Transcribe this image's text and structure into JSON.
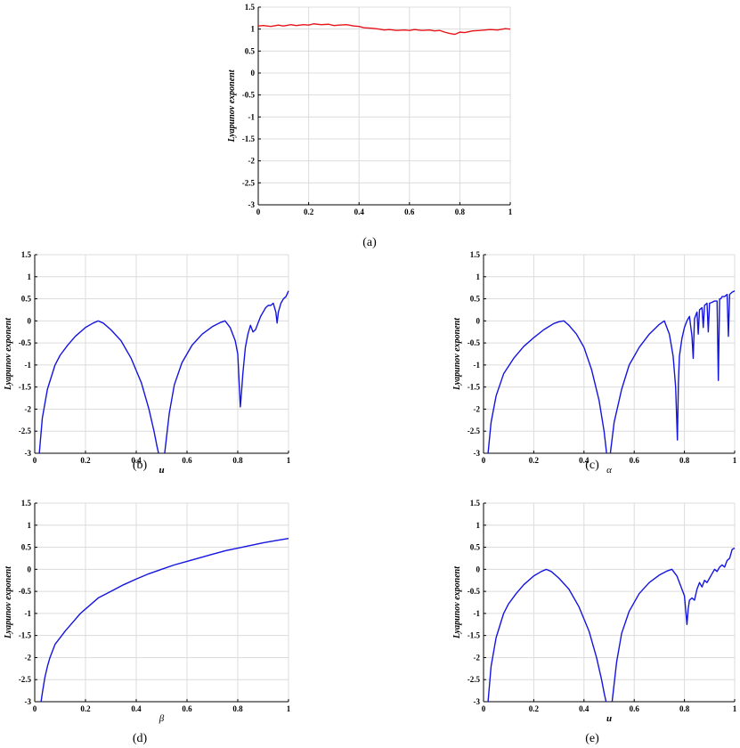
{
  "chart_data": [
    {
      "type": "line",
      "caption": "(a)",
      "ylabel": "Lyapunov exponent",
      "xlabel": "",
      "xlim": [
        0,
        1
      ],
      "ylim": [
        -3,
        1.5
      ],
      "xticks": [
        "0",
        "0.2",
        "0.4",
        "0.6",
        "0.8",
        "1"
      ],
      "yticks": [
        "1.5",
        "1",
        "0.5",
        "0",
        "-0.5",
        "-1",
        "-1.5",
        "-2",
        "-2.5",
        "-3"
      ],
      "grid": true,
      "series": [
        {
          "color": "#e8141b",
          "x": [
            0,
            0.02,
            0.05,
            0.08,
            0.1,
            0.13,
            0.15,
            0.18,
            0.2,
            0.22,
            0.25,
            0.28,
            0.3,
            0.32,
            0.35,
            0.38,
            0.4,
            0.42,
            0.45,
            0.48,
            0.5,
            0.52,
            0.55,
            0.58,
            0.6,
            0.62,
            0.65,
            0.68,
            0.7,
            0.72,
            0.74,
            0.76,
            0.78,
            0.8,
            0.82,
            0.85,
            0.88,
            0.9,
            0.92,
            0.95,
            0.98,
            1.0
          ],
          "y": [
            1.07,
            1.08,
            1.06,
            1.09,
            1.07,
            1.1,
            1.08,
            1.1,
            1.09,
            1.12,
            1.1,
            1.11,
            1.08,
            1.09,
            1.1,
            1.07,
            1.06,
            1.03,
            1.02,
            1.0,
            0.98,
            0.99,
            0.97,
            0.98,
            0.97,
            0.99,
            0.97,
            0.98,
            0.96,
            0.97,
            0.93,
            0.9,
            0.88,
            0.93,
            0.92,
            0.96,
            0.97,
            0.98,
            0.99,
            0.98,
            1.01,
            1.0
          ]
        }
      ]
    },
    {
      "type": "line",
      "caption": "(b)",
      "ylabel": "Lyapunov exponent",
      "xlabel": "u",
      "xlim": [
        0,
        1
      ],
      "ylim": [
        -3,
        1.5
      ],
      "xticks": [
        "0",
        "0.2",
        "0.4",
        "0.6",
        "0.8",
        "1"
      ],
      "yticks": [
        "1.5",
        "1",
        "0.5",
        "0",
        "-0.5",
        "-1",
        "-1.5",
        "-2",
        "-2.5",
        "-3"
      ],
      "grid": true,
      "series": [
        {
          "color": "#1414e0",
          "x": [
            0.018,
            0.03,
            0.05,
            0.08,
            0.1,
            0.13,
            0.16,
            0.2,
            0.23,
            0.25,
            0.27,
            0.3,
            0.34,
            0.38,
            0.42,
            0.45,
            0.47,
            0.482,
            0.488,
            null,
            0.512,
            0.518,
            0.53,
            0.55,
            0.58,
            0.62,
            0.66,
            0.7,
            0.73,
            0.75,
            0.77,
            0.79,
            0.8,
            0.81,
            0.815,
            0.82,
            0.83,
            0.84,
            0.85,
            0.86,
            0.87,
            0.88,
            0.89,
            0.9,
            0.91,
            0.92,
            0.93,
            0.94,
            0.95,
            0.955,
            0.96,
            0.97,
            0.98,
            0.99,
            1.0
          ],
          "y": [
            -3.0,
            -2.2,
            -1.55,
            -1.0,
            -0.78,
            -0.55,
            -0.35,
            -0.15,
            -0.05,
            0.0,
            -0.05,
            -0.2,
            -0.45,
            -0.85,
            -1.4,
            -2.0,
            -2.5,
            -2.85,
            -3.0,
            null,
            -3.0,
            -2.7,
            -2.1,
            -1.45,
            -0.95,
            -0.55,
            -0.3,
            -0.13,
            -0.04,
            0.0,
            -0.15,
            -0.45,
            -0.75,
            -1.95,
            -1.6,
            -1.2,
            -0.6,
            -0.3,
            -0.1,
            -0.25,
            -0.2,
            -0.05,
            0.1,
            0.2,
            0.3,
            0.35,
            0.35,
            0.4,
            0.2,
            -0.05,
            0.2,
            0.4,
            0.5,
            0.55,
            0.68
          ]
        }
      ]
    },
    {
      "type": "line",
      "caption": "(c)",
      "ylabel": "Lyapunov exponent",
      "xlabel": "α",
      "xlim": [
        0,
        1
      ],
      "ylim": [
        -3,
        1.5
      ],
      "xticks": [
        "0",
        "0.2",
        "0.4",
        "0.6",
        "0.8",
        "1"
      ],
      "yticks": [
        "1.5",
        "1",
        "0.5",
        "0",
        "-0.5",
        "-1",
        "-1.5",
        "-2",
        "-2.5",
        "-3"
      ],
      "grid": true,
      "series": [
        {
          "color": "#1414e0",
          "x": [
            0.018,
            0.03,
            0.05,
            0.08,
            0.12,
            0.16,
            0.2,
            0.24,
            0.28,
            0.3,
            0.32,
            0.34,
            0.37,
            0.4,
            0.43,
            0.46,
            0.48,
            0.49,
            null,
            0.505,
            0.52,
            0.55,
            0.58,
            0.62,
            0.66,
            0.7,
            0.72,
            0.74,
            0.755,
            0.765,
            0.772,
            0.776,
            0.78,
            0.79,
            0.8,
            0.81,
            0.82,
            0.83,
            0.835,
            0.84,
            0.85,
            0.855,
            0.86,
            0.87,
            0.875,
            0.88,
            0.89,
            0.895,
            0.9,
            0.91,
            0.92,
            0.93,
            0.935,
            0.94,
            0.945,
            0.95,
            0.96,
            0.97,
            0.975,
            0.98,
            0.99,
            1.0
          ],
          "y": [
            -3.0,
            -2.3,
            -1.7,
            -1.2,
            -0.85,
            -0.58,
            -0.38,
            -0.2,
            -0.06,
            -0.02,
            0.0,
            -0.1,
            -0.3,
            -0.6,
            -1.1,
            -1.8,
            -2.5,
            -3.0,
            null,
            -3.0,
            -2.3,
            -1.55,
            -1.0,
            -0.6,
            -0.3,
            -0.08,
            0.0,
            -0.3,
            -0.8,
            -1.5,
            -2.7,
            -1.4,
            -0.8,
            -0.4,
            -0.15,
            0.0,
            0.1,
            -0.35,
            -0.85,
            0.05,
            0.2,
            -0.3,
            0.25,
            0.3,
            -0.15,
            0.35,
            0.4,
            -0.25,
            0.4,
            0.42,
            0.45,
            0.45,
            -1.35,
            0.5,
            0.5,
            0.55,
            0.55,
            0.6,
            -0.35,
            0.6,
            0.65,
            0.68
          ]
        }
      ]
    },
    {
      "type": "line",
      "caption": "(d)",
      "ylabel": "Lyapunov exponent",
      "xlabel": "β",
      "xlim": [
        0,
        1
      ],
      "ylim": [
        -3,
        1.5
      ],
      "xticks": [
        "0",
        "0.2",
        "0.4",
        "0.6",
        "0.8",
        "1"
      ],
      "yticks": [
        "1.5",
        "1",
        "0.5",
        "0",
        "-0.5",
        "-1",
        "-1.5",
        "-2",
        "-2.5",
        "-3"
      ],
      "grid": true,
      "series": [
        {
          "color": "#1414e0",
          "x": [
            0.025,
            0.03,
            0.04,
            0.05,
            0.06,
            0.08,
            0.1,
            0.12,
            0.15,
            0.18,
            0.2,
            0.25,
            0.3,
            0.35,
            0.4,
            0.45,
            0.5,
            0.55,
            0.6,
            0.65,
            0.7,
            0.75,
            0.8,
            0.85,
            0.9,
            0.95,
            1.0
          ],
          "y": [
            -3.0,
            -2.8,
            -2.45,
            -2.2,
            -2.0,
            -1.7,
            -1.55,
            -1.4,
            -1.2,
            -1.0,
            -0.9,
            -0.65,
            -0.5,
            -0.35,
            -0.22,
            -0.1,
            0.0,
            0.1,
            0.18,
            0.26,
            0.34,
            0.42,
            0.48,
            0.54,
            0.6,
            0.65,
            0.7
          ]
        }
      ]
    },
    {
      "type": "line",
      "caption": "(e)",
      "ylabel": "Lyapunov exponent",
      "xlabel": "u",
      "xlim": [
        0,
        1
      ],
      "ylim": [
        -3,
        1.5
      ],
      "xticks": [
        "0",
        "0.2",
        "0.4",
        "0.6",
        "0.8",
        "1"
      ],
      "yticks": [
        "1.5",
        "1",
        "0.5",
        "0",
        "-0.5",
        "-1",
        "-1.5",
        "-2",
        "-2.5",
        "-3"
      ],
      "grid": true,
      "series": [
        {
          "color": "#1414e0",
          "x": [
            0.018,
            0.03,
            0.05,
            0.08,
            0.1,
            0.13,
            0.16,
            0.2,
            0.23,
            0.25,
            0.27,
            0.3,
            0.34,
            0.38,
            0.42,
            0.45,
            0.47,
            0.482,
            0.488,
            null,
            0.512,
            0.518,
            0.53,
            0.55,
            0.58,
            0.62,
            0.66,
            0.7,
            0.73,
            0.75,
            0.77,
            0.79,
            0.8,
            0.81,
            0.815,
            0.82,
            0.83,
            0.84,
            0.85,
            0.86,
            0.87,
            0.88,
            0.89,
            0.9,
            0.91,
            0.92,
            0.93,
            0.94,
            0.95,
            0.96,
            0.97,
            0.98,
            0.99,
            1.0
          ],
          "y": [
            -3.0,
            -2.2,
            -1.55,
            -1.0,
            -0.78,
            -0.55,
            -0.35,
            -0.15,
            -0.05,
            0.0,
            -0.05,
            -0.2,
            -0.45,
            -0.85,
            -1.4,
            -2.0,
            -2.5,
            -2.85,
            -3.0,
            null,
            -3.0,
            -2.7,
            -2.1,
            -1.45,
            -0.95,
            -0.55,
            -0.3,
            -0.13,
            -0.04,
            0.0,
            -0.15,
            -0.45,
            -0.6,
            -1.25,
            -0.9,
            -0.7,
            -0.65,
            -0.7,
            -0.45,
            -0.3,
            -0.4,
            -0.25,
            -0.3,
            -0.2,
            -0.1,
            0.0,
            -0.05,
            0.05,
            0.1,
            0.05,
            0.2,
            0.25,
            0.45,
            0.48
          ]
        }
      ]
    }
  ]
}
